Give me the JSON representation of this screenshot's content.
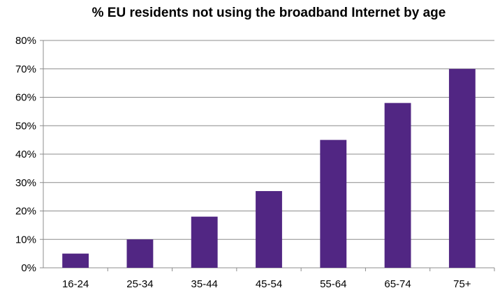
{
  "chart_data": {
    "type": "bar",
    "title": "% EU residents not using the broadband Internet by age",
    "xlabel": "",
    "ylabel": "",
    "categories": [
      "16-24",
      "25-34",
      "35-44",
      "45-54",
      "55-64",
      "65-74",
      "75+"
    ],
    "values": [
      5,
      10,
      18,
      27,
      45,
      58,
      70
    ],
    "ylim": [
      0,
      80
    ],
    "y_ticks": [
      0,
      10,
      20,
      30,
      40,
      50,
      60,
      70,
      80
    ],
    "y_tick_labels": [
      "0%",
      "10%",
      "20%",
      "30%",
      "40%",
      "50%",
      "60%",
      "70%",
      "80%"
    ],
    "grid": true,
    "legend": "none",
    "bar_color": "#512683",
    "grid_color": "#8c8c8c"
  }
}
